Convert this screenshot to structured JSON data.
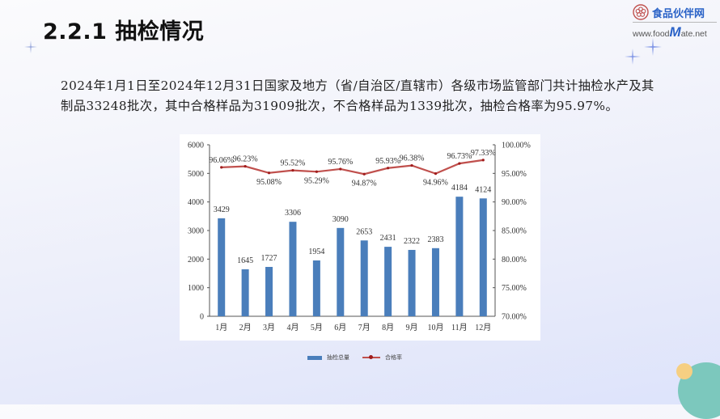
{
  "slide": {
    "title": "2.2.1 抽检情况",
    "logo": {
      "name_cn": "食品伙伴网",
      "url_prefix": "www.food",
      "url_m": "M",
      "url_suffix": "ate.net"
    },
    "paragraph": "2024年1月1日至2024年12月31日国家及地方（省/自治区/直辖市）各级市场监管部门共计抽检水产及其制品33248批次，其中合格样品为31909批次，不合格样品为1339批次，抽检合格率为95.97%。"
  },
  "legend": {
    "bar_label": "抽检总量",
    "line_label": "合格率"
  },
  "colors": {
    "bar": "#4a7ebb",
    "line": "#c0504d",
    "marker": "#a01c1c"
  },
  "chart_data": {
    "type": "bar",
    "title": "",
    "categories": [
      "1月",
      "2月",
      "3月",
      "4月",
      "5月",
      "6月",
      "7月",
      "8月",
      "9月",
      "10月",
      "11月",
      "12月"
    ],
    "series": [
      {
        "name": "抽检总量",
        "type": "bar",
        "axis": "left",
        "values": [
          3429,
          1645,
          1727,
          3306,
          1954,
          3090,
          2653,
          2431,
          2322,
          2383,
          4184,
          4124
        ],
        "labels": [
          "3429",
          "1645",
          "1727",
          "3306",
          "1954",
          "3090",
          "2653",
          "2431",
          "2322",
          "2383",
          "4184",
          "4124"
        ]
      },
      {
        "name": "合格率",
        "type": "line",
        "axis": "right",
        "values": [
          96.06,
          96.23,
          95.08,
          95.52,
          95.29,
          95.76,
          94.87,
          95.93,
          96.38,
          94.96,
          96.73,
          97.33
        ],
        "labels": [
          "96.06%",
          "96.23%",
          "95.08%",
          "95.52%",
          "95.29%",
          "95.76%",
          "94.87%",
          "95.93%",
          "96.38%",
          "94.96%",
          "96.73%",
          "97.33%"
        ]
      }
    ],
    "left_axis": {
      "ylim": [
        0,
        6000
      ],
      "ticks": [
        "0",
        "1000",
        "2000",
        "3000",
        "4000",
        "5000",
        "6000"
      ]
    },
    "right_axis": {
      "ylim": [
        70,
        100
      ],
      "ticks": [
        "70.00%",
        "75.00%",
        "80.00%",
        "85.00%",
        "90.00%",
        "95.00%",
        "100.00%"
      ]
    },
    "xlabel": "",
    "ylabel": "",
    "grid": false,
    "legend_position": "bottom"
  }
}
